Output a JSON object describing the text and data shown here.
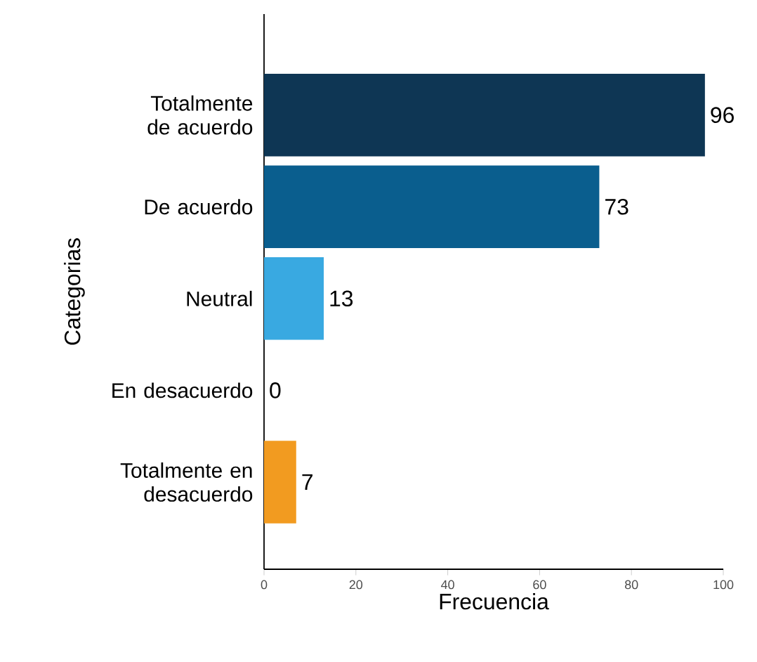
{
  "chart_data": {
    "type": "bar",
    "orientation": "horizontal",
    "xlabel": "Frecuencia",
    "ylabel": "Categorias",
    "categories": [
      "Totalmente de acuerdo",
      "De acuerdo",
      "Neutral",
      "En desacuerdo",
      "Totalmente en desacuerdo"
    ],
    "values": [
      96,
      73,
      13,
      0,
      7
    ],
    "colors": [
      "#0e3654",
      "#0a5e8e",
      "#39a9e1",
      "#cccccc",
      "#f29b20"
    ],
    "xlim": [
      0,
      100
    ],
    "xticks": [
      0,
      20,
      40,
      60,
      80,
      100
    ],
    "data_labels": true
  }
}
